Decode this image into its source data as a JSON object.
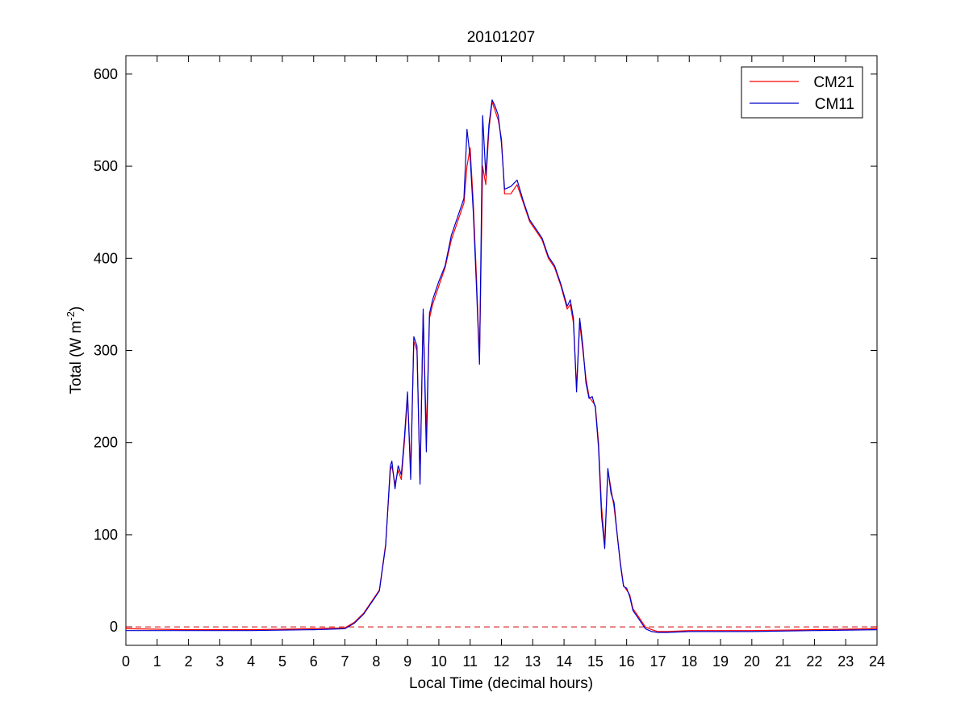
{
  "chart_data": {
    "type": "line",
    "title": "20101207",
    "xlabel": "Local Time (decimal hours)",
    "ylabel": {
      "prefix": "Total (W m",
      "superscript": "-2",
      "suffix": ")"
    },
    "xlim": [
      0,
      24
    ],
    "ylim": [
      -20,
      620
    ],
    "x_ticks": [
      0,
      1,
      2,
      3,
      4,
      5,
      6,
      7,
      8,
      9,
      10,
      11,
      12,
      13,
      14,
      15,
      16,
      17,
      18,
      19,
      20,
      21,
      22,
      23,
      24
    ],
    "y_ticks": [
      0,
      100,
      200,
      300,
      400,
      500,
      600
    ],
    "grid": false,
    "legend_position": "top-right",
    "reference_line": {
      "y": 0,
      "style": "dashed",
      "color": "#cc0000"
    },
    "series": [
      {
        "name": "CM21",
        "color": "#ff0000",
        "x": [
          0,
          2,
          4,
          6,
          7.0,
          7.3,
          7.6,
          7.9,
          8.1,
          8.3,
          8.45,
          8.5,
          8.6,
          8.7,
          8.8,
          8.9,
          9.0,
          9.1,
          9.2,
          9.3,
          9.4,
          9.5,
          9.6,
          9.7,
          9.8,
          9.9,
          10.0,
          10.2,
          10.4,
          10.6,
          10.8,
          10.9,
          11.0,
          11.1,
          11.2,
          11.3,
          11.4,
          11.5,
          11.6,
          11.7,
          11.8,
          11.9,
          12.0,
          12.1,
          12.3,
          12.5,
          12.7,
          12.9,
          13.1,
          13.3,
          13.5,
          13.7,
          13.9,
          14.1,
          14.2,
          14.3,
          14.4,
          14.5,
          14.6,
          14.7,
          14.8,
          14.9,
          15.0,
          15.1,
          15.2,
          15.3,
          15.4,
          15.5,
          15.6,
          15.7,
          15.8,
          15.9,
          16.0,
          16.1,
          16.2,
          16.4,
          16.6,
          16.8,
          17.0,
          17.3,
          18,
          20,
          22,
          24
        ],
        "y": [
          -2,
          -3,
          -3,
          -2,
          -1,
          5,
          15,
          30,
          40,
          90,
          170,
          175,
          155,
          170,
          160,
          200,
          250,
          170,
          310,
          300,
          160,
          340,
          210,
          335,
          350,
          360,
          370,
          390,
          420,
          440,
          460,
          500,
          520,
          460,
          380,
          290,
          500,
          480,
          540,
          570,
          560,
          550,
          530,
          470,
          470,
          480,
          460,
          440,
          430,
          420,
          400,
          390,
          370,
          345,
          350,
          330,
          260,
          330,
          300,
          270,
          250,
          245,
          240,
          200,
          130,
          90,
          170,
          150,
          130,
          100,
          70,
          45,
          40,
          35,
          20,
          10,
          0,
          -3,
          -5,
          -5,
          -4,
          -4,
          -3,
          -2
        ]
      },
      {
        "name": "CM11",
        "color": "#0000cc",
        "x": [
          0,
          2,
          4,
          6,
          7.0,
          7.3,
          7.6,
          7.9,
          8.1,
          8.3,
          8.45,
          8.5,
          8.6,
          8.7,
          8.8,
          8.9,
          9.0,
          9.1,
          9.2,
          9.3,
          9.4,
          9.5,
          9.6,
          9.7,
          9.8,
          9.9,
          10.0,
          10.2,
          10.4,
          10.6,
          10.8,
          10.9,
          11.0,
          11.1,
          11.2,
          11.3,
          11.4,
          11.5,
          11.6,
          11.7,
          11.8,
          11.9,
          12.0,
          12.1,
          12.3,
          12.5,
          12.7,
          12.9,
          13.1,
          13.3,
          13.5,
          13.7,
          13.9,
          14.1,
          14.2,
          14.3,
          14.4,
          14.5,
          14.6,
          14.7,
          14.8,
          14.9,
          15.0,
          15.1,
          15.2,
          15.3,
          15.4,
          15.5,
          15.6,
          15.7,
          15.8,
          15.9,
          16.0,
          16.1,
          16.2,
          16.4,
          16.6,
          16.8,
          17.0,
          17.3,
          18,
          20,
          22,
          24
        ],
        "y": [
          -4,
          -4,
          -4,
          -3,
          -2,
          4,
          14,
          29,
          39,
          88,
          175,
          180,
          150,
          175,
          165,
          205,
          255,
          160,
          315,
          305,
          155,
          345,
          190,
          340,
          355,
          365,
          375,
          392,
          425,
          445,
          465,
          540,
          510,
          450,
          370,
          285,
          555,
          490,
          545,
          572,
          565,
          555,
          525,
          475,
          478,
          485,
          462,
          442,
          432,
          422,
          402,
          392,
          372,
          348,
          355,
          335,
          255,
          335,
          305,
          265,
          248,
          250,
          238,
          195,
          120,
          85,
          172,
          145,
          135,
          100,
          68,
          44,
          42,
          33,
          18,
          8,
          -2,
          -5,
          -6,
          -6,
          -5,
          -5,
          -4,
          -3
        ]
      }
    ]
  }
}
